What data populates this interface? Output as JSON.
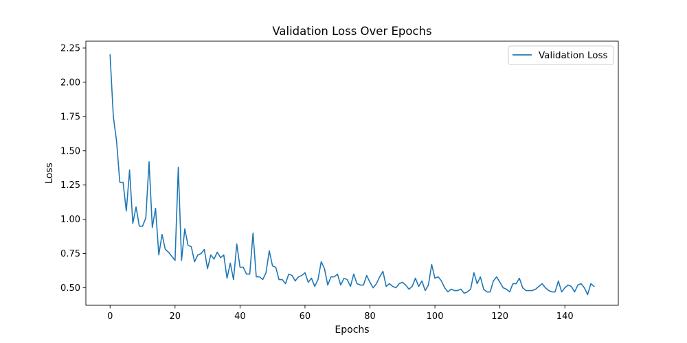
{
  "chart_data": {
    "type": "line",
    "title": "Validation Loss Over Epochs",
    "xlabel": "Epochs",
    "ylabel": "Loss",
    "xlim": [
      -7.45,
      156.45
    ],
    "ylim": [
      0.3725,
      2.3
    ],
    "xticks": [
      0,
      20,
      40,
      60,
      80,
      100,
      120,
      140
    ],
    "yticks": [
      0.5,
      0.75,
      1.0,
      1.25,
      1.5,
      1.75,
      2.0,
      2.25
    ],
    "xtick_labels": [
      "0",
      "20",
      "40",
      "60",
      "80",
      "100",
      "120",
      "140"
    ],
    "ytick_labels": [
      "0.50",
      "0.75",
      "1.00",
      "1.25",
      "1.50",
      "1.75",
      "2.00",
      "2.25"
    ],
    "grid": false,
    "legend_position": "upper right",
    "series": [
      {
        "name": "Validation Loss",
        "color": "#1f77b4",
        "x_start": 0,
        "x_step": 1,
        "values": [
          2.2,
          1.75,
          1.57,
          1.27,
          1.27,
          1.06,
          1.36,
          0.97,
          1.09,
          0.95,
          0.95,
          1.01,
          1.42,
          0.94,
          1.08,
          0.74,
          0.89,
          0.78,
          0.76,
          0.73,
          0.7,
          1.38,
          0.7,
          0.93,
          0.81,
          0.8,
          0.69,
          0.74,
          0.75,
          0.78,
          0.64,
          0.74,
          0.71,
          0.76,
          0.72,
          0.74,
          0.57,
          0.68,
          0.56,
          0.82,
          0.65,
          0.65,
          0.6,
          0.6,
          0.9,
          0.58,
          0.58,
          0.56,
          0.61,
          0.77,
          0.66,
          0.65,
          0.56,
          0.56,
          0.53,
          0.6,
          0.59,
          0.55,
          0.58,
          0.59,
          0.61,
          0.54,
          0.57,
          0.51,
          0.56,
          0.69,
          0.64,
          0.52,
          0.58,
          0.58,
          0.6,
          0.52,
          0.57,
          0.56,
          0.51,
          0.6,
          0.53,
          0.52,
          0.52,
          0.59,
          0.54,
          0.5,
          0.53,
          0.58,
          0.62,
          0.51,
          0.53,
          0.51,
          0.5,
          0.53,
          0.54,
          0.52,
          0.49,
          0.51,
          0.57,
          0.51,
          0.55,
          0.48,
          0.52,
          0.67,
          0.57,
          0.58,
          0.55,
          0.5,
          0.47,
          0.49,
          0.48,
          0.48,
          0.49,
          0.46,
          0.47,
          0.49,
          0.61,
          0.53,
          0.58,
          0.49,
          0.47,
          0.47,
          0.55,
          0.58,
          0.54,
          0.5,
          0.49,
          0.47,
          0.53,
          0.53,
          0.57,
          0.5,
          0.48,
          0.48,
          0.48,
          0.49,
          0.51,
          0.53,
          0.5,
          0.48,
          0.47,
          0.47,
          0.55,
          0.47,
          0.5,
          0.52,
          0.51,
          0.47,
          0.52,
          0.53,
          0.5,
          0.45,
          0.53,
          0.51
        ]
      }
    ]
  }
}
